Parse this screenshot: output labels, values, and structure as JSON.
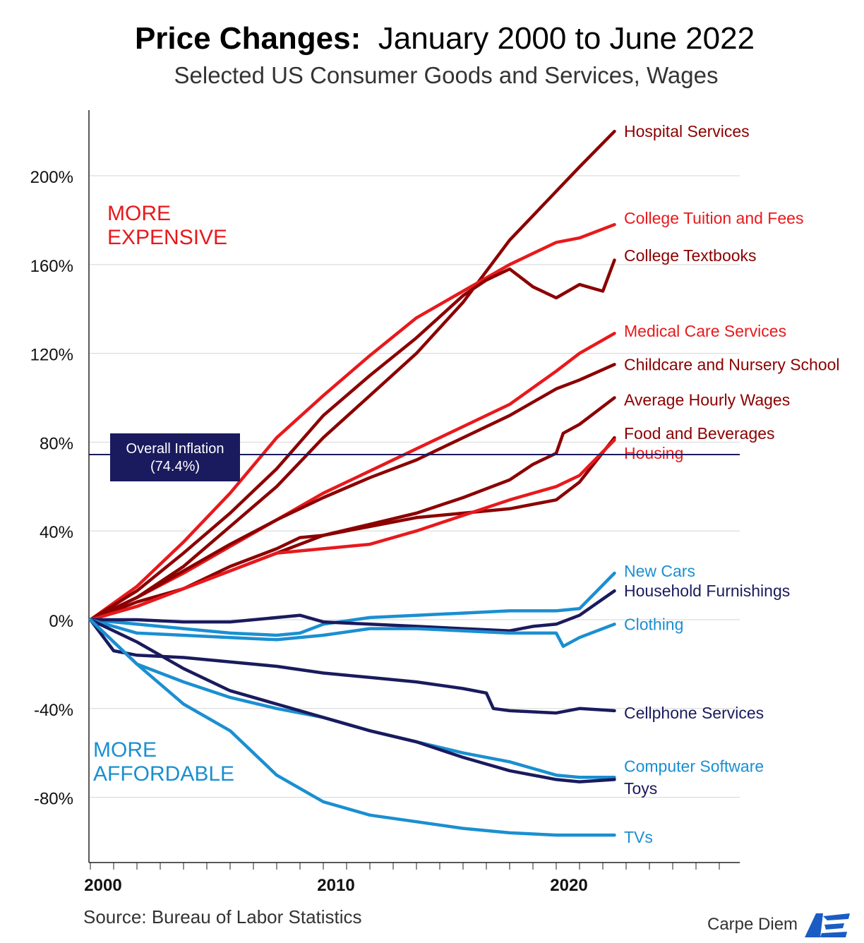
{
  "title": {
    "bold": "Price Changes:",
    "rest": "January 2000 to June 2022"
  },
  "subtitle": "Selected US Consumer Goods and Services, Wages",
  "source": "Source: Bureau of Labor Statistics",
  "brand": "Carpe Diem",
  "brand_logo": "AEI",
  "annotations": {
    "more_expensive": [
      "MORE",
      "EXPENSIVE"
    ],
    "more_affordable": [
      "MORE",
      "AFFORDABLE"
    ]
  },
  "inflation_box": [
    "Overall Inflation",
    "(74.4%)"
  ],
  "chart_data": {
    "type": "line",
    "title": "Price Changes: January 2000 to June 2022",
    "subtitle": "Selected US Consumer Goods and Services, Wages",
    "xlabel": "",
    "ylabel": "",
    "xlim": [
      2000,
      2028
    ],
    "ylim": [
      -108,
      230
    ],
    "yticks": [
      200,
      160,
      120,
      80,
      40,
      0,
      -40,
      -80
    ],
    "ytick_labels": [
      "200%",
      "160%",
      "120%",
      "80%",
      "40%",
      "0%",
      "-40%",
      "-80%"
    ],
    "xtick_labels": [
      {
        "x": 2000,
        "label": "2000"
      },
      {
        "x": 2010,
        "label": "2010"
      },
      {
        "x": 2020,
        "label": "2020"
      }
    ],
    "grid": true,
    "reference_line": {
      "y": 74.4,
      "label": "Overall Inflation (74.4%)",
      "color": "#1a1a5e"
    },
    "series": [
      {
        "name": "Hospital Services",
        "color": "#8b0000",
        "label_y": 220,
        "x": [
          2000,
          2002,
          2004,
          2006,
          2008,
          2010,
          2012,
          2014,
          2016,
          2018,
          2020,
          2021,
          2022.5
        ],
        "values": [
          0,
          10,
          24,
          42,
          60,
          82,
          101,
          120,
          143,
          171,
          193,
          204,
          220
        ]
      },
      {
        "name": "College Tuition and Fees",
        "color": "#e8191c",
        "label_y": 181,
        "x": [
          2000,
          2002,
          2004,
          2006,
          2008,
          2010,
          2012,
          2014,
          2016,
          2018,
          2020,
          2021,
          2022.5
        ],
        "values": [
          0,
          15,
          35,
          57,
          82,
          101,
          119,
          136,
          148,
          160,
          170,
          172,
          178
        ]
      },
      {
        "name": "College Textbooks",
        "color": "#8b0000",
        "label_y": 164,
        "x": [
          2000,
          2002,
          2004,
          2006,
          2008,
          2010,
          2012,
          2014,
          2016,
          2017,
          2018,
          2019,
          2020,
          2021,
          2022,
          2022.5
        ],
        "values": [
          0,
          13,
          30,
          48,
          68,
          92,
          110,
          127,
          146,
          153,
          158,
          150,
          145,
          151,
          148,
          162
        ]
      },
      {
        "name": "Medical Care Services",
        "color": "#e8191c",
        "label_y": 130,
        "x": [
          2000,
          2002,
          2004,
          2006,
          2008,
          2010,
          2012,
          2014,
          2016,
          2018,
          2020,
          2021,
          2022.5
        ],
        "values": [
          0,
          10,
          21,
          33,
          45,
          57,
          67,
          77,
          87,
          97,
          112,
          120,
          129
        ]
      },
      {
        "name": "Childcare and Nursery School",
        "color": "#8b0000",
        "label_y": 115,
        "x": [
          2000,
          2002,
          2004,
          2006,
          2008,
          2010,
          2012,
          2014,
          2016,
          2018,
          2020,
          2021,
          2022.5
        ],
        "values": [
          0,
          10,
          22,
          34,
          45,
          55,
          64,
          72,
          82,
          92,
          104,
          108,
          115
        ]
      },
      {
        "name": "Average Hourly Wages",
        "color": "#8b0000",
        "label_y": 99,
        "x": [
          2000,
          2002,
          2004,
          2006,
          2008,
          2010,
          2012,
          2014,
          2016,
          2018,
          2019,
          2020,
          2020.3,
          2021,
          2022.5
        ],
        "values": [
          0,
          8,
          14,
          22,
          30,
          38,
          43,
          48,
          55,
          63,
          70,
          75,
          84,
          88,
          100
        ]
      },
      {
        "name": "Food and Beverages",
        "color": "#8b0000",
        "label_y": 84,
        "x": [
          2000,
          2002,
          2004,
          2006,
          2008,
          2009,
          2010,
          2012,
          2014,
          2016,
          2018,
          2020,
          2021,
          2022.5
        ],
        "values": [
          0,
          6,
          14,
          24,
          32,
          37,
          38,
          42,
          46,
          48,
          50,
          54,
          62,
          82
        ]
      },
      {
        "name": "Housing",
        "color": "#e8191c",
        "label_y": 75,
        "x": [
          2000,
          2002,
          2004,
          2006,
          2008,
          2010,
          2012,
          2014,
          2016,
          2018,
          2020,
          2021,
          2022.5
        ],
        "values": [
          0,
          6,
          14,
          22,
          30,
          32,
          34,
          40,
          47,
          54,
          60,
          65,
          81
        ]
      },
      {
        "name": "New Cars",
        "color": "#1a8fd1",
        "label_y": 22,
        "x": [
          2000,
          2002,
          2004,
          2006,
          2008,
          2009,
          2010,
          2012,
          2014,
          2016,
          2018,
          2020,
          2021,
          2022.5
        ],
        "values": [
          0,
          -2,
          -4,
          -6,
          -7,
          -6,
          -2,
          1,
          2,
          3,
          4,
          4,
          5,
          21
        ]
      },
      {
        "name": "Household Furnishings",
        "color": "#1a1a5e",
        "label_y": 13,
        "x": [
          2000,
          2002,
          2004,
          2006,
          2008,
          2009,
          2010,
          2012,
          2014,
          2016,
          2018,
          2019,
          2020,
          2021,
          2022.5
        ],
        "values": [
          0,
          0,
          -1,
          -1,
          1,
          2,
          -1,
          -2,
          -3,
          -4,
          -5,
          -3,
          -2,
          2,
          13
        ]
      },
      {
        "name": "Clothing",
        "color": "#1a8fd1",
        "label_y": -2,
        "x": [
          2000,
          2002,
          2004,
          2006,
          2008,
          2010,
          2012,
          2014,
          2016,
          2018,
          2020,
          2020.3,
          2021,
          2022.5
        ],
        "values": [
          0,
          -6,
          -7,
          -8,
          -9,
          -7,
          -4,
          -4,
          -5,
          -6,
          -6,
          -12,
          -8,
          -2
        ]
      },
      {
        "name": "Cellphone Services",
        "color": "#1a1a5e",
        "label_y": -42,
        "x": [
          2000,
          2001,
          2002,
          2004,
          2006,
          2008,
          2010,
          2012,
          2014,
          2016,
          2017,
          2017.3,
          2018,
          2020,
          2021,
          2022.5
        ],
        "values": [
          0,
          -14,
          -16,
          -17,
          -19,
          -21,
          -24,
          -26,
          -28,
          -31,
          -33,
          -40,
          -41,
          -42,
          -40,
          -41
        ]
      },
      {
        "name": "Computer Software",
        "color": "#1a8fd1",
        "label_y": -66,
        "x": [
          2000,
          2002,
          2004,
          2006,
          2008,
          2010,
          2012,
          2014,
          2016,
          2018,
          2020,
          2021,
          2022.5
        ],
        "values": [
          0,
          -20,
          -28,
          -35,
          -40,
          -44,
          -50,
          -55,
          -60,
          -64,
          -70,
          -71,
          -71
        ]
      },
      {
        "name": "Toys",
        "color": "#1a1a5e",
        "label_y": -76,
        "x": [
          2000,
          2002,
          2004,
          2006,
          2008,
          2010,
          2012,
          2014,
          2016,
          2018,
          2020,
          2021,
          2022.5
        ],
        "values": [
          0,
          -10,
          -22,
          -32,
          -38,
          -44,
          -50,
          -55,
          -62,
          -68,
          -72,
          -73,
          -72
        ]
      },
      {
        "name": "TVs",
        "color": "#1a8fd1",
        "label_y": -98,
        "x": [
          2000,
          2002,
          2004,
          2006,
          2008,
          2010,
          2012,
          2014,
          2016,
          2018,
          2020,
          2021,
          2022.5
        ],
        "values": [
          0,
          -20,
          -38,
          -50,
          -70,
          -82,
          -88,
          -91,
          -94,
          -96,
          -97,
          -97,
          -97
        ]
      }
    ]
  }
}
